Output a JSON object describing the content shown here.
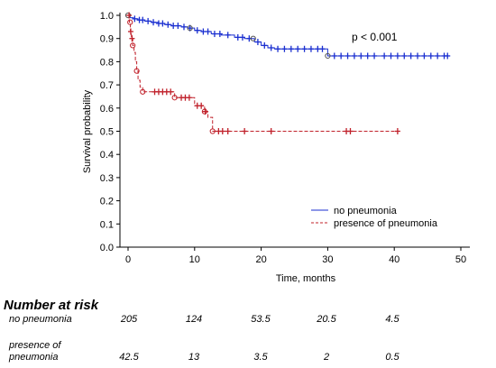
{
  "chart_data": {
    "type": "line",
    "subtype": "kaplan-meier",
    "title": "",
    "xlabel": "Time, months",
    "ylabel": "Survival probability",
    "xlim": [
      0,
      50
    ],
    "ylim": [
      0,
      1.0
    ],
    "xticks": [
      "0",
      "10",
      "20",
      "30",
      "40",
      "50"
    ],
    "yticks": [
      "0.0",
      "0.1",
      "0.2",
      "0.3",
      "0.4",
      "0.5",
      "0.6",
      "0.7",
      "0.8",
      "0.9",
      "1.0"
    ],
    "grid": false,
    "legend_position": "lower-right",
    "annotation": "p < 0.001",
    "series": [
      {
        "name": "no pneumonia",
        "color": "#1a2fd0",
        "style": "solid",
        "steps": [
          [
            0,
            1.0
          ],
          [
            0.3,
            0.99
          ],
          [
            0.8,
            0.985
          ],
          [
            1.5,
            0.98
          ],
          [
            2.5,
            0.975
          ],
          [
            3.5,
            0.97
          ],
          [
            4.5,
            0.965
          ],
          [
            5.5,
            0.96
          ],
          [
            6.5,
            0.955
          ],
          [
            8,
            0.95
          ],
          [
            9,
            0.945
          ],
          [
            10,
            0.935
          ],
          [
            11,
            0.93
          ],
          [
            12.5,
            0.92
          ],
          [
            14,
            0.915
          ],
          [
            16,
            0.905
          ],
          [
            17.5,
            0.9
          ],
          [
            19,
            0.885
          ],
          [
            20,
            0.87
          ],
          [
            21,
            0.86
          ],
          [
            22,
            0.855
          ],
          [
            30,
            0.825
          ],
          [
            48,
            0.825
          ]
        ],
        "censored": [
          1,
          1.7,
          2.2,
          3,
          3.8,
          4.6,
          5.2,
          6,
          6.8,
          7.5,
          8.4,
          9.3,
          10.4,
          11.3,
          12,
          13,
          13.8,
          15,
          16.5,
          17.2,
          18.2,
          19.5,
          20.5,
          21.5,
          22.5,
          23.5,
          24.5,
          25.5,
          26.5,
          27.5,
          28.5,
          29.2,
          31,
          32,
          33,
          34,
          35,
          36,
          37,
          38.5,
          39.5,
          40.5,
          41.5,
          42.5,
          43.5,
          44.5,
          45.5,
          46.5,
          47.5,
          48
        ],
        "event_markers": [
          0,
          9.3,
          18.8,
          30
        ]
      },
      {
        "name": "presence of pneumonia",
        "color": "#c0202a",
        "style": "dashed",
        "steps": [
          [
            0,
            1.0
          ],
          [
            0.2,
            0.97
          ],
          [
            0.35,
            0.93
          ],
          [
            0.5,
            0.9
          ],
          [
            0.7,
            0.87
          ],
          [
            0.9,
            0.84
          ],
          [
            1.1,
            0.8
          ],
          [
            1.3,
            0.76
          ],
          [
            1.5,
            0.72
          ],
          [
            1.8,
            0.69
          ],
          [
            2.2,
            0.67
          ],
          [
            7,
            0.645
          ],
          [
            10,
            0.61
          ],
          [
            11.5,
            0.585
          ],
          [
            12,
            0.56
          ],
          [
            12.7,
            0.5
          ],
          [
            41,
            0.5
          ]
        ],
        "censored": [
          0.15,
          0.4,
          0.6,
          4,
          4.6,
          5.2,
          5.8,
          6.4,
          8,
          8.6,
          9.2,
          10.4,
          11,
          11.6,
          13.6,
          14.2,
          15,
          17.5,
          21.5,
          32.8,
          33.4,
          40.5
        ],
        "event_markers": [
          0.3,
          0.7,
          1.3,
          2.2,
          7,
          11.5,
          12.7
        ]
      }
    ]
  },
  "risk_table": {
    "title": "Number at risk",
    "rows": [
      {
        "label": "no pneumonia",
        "values": [
          "205",
          "124",
          "53.5",
          "20.5",
          "4.5"
        ]
      },
      {
        "label_lines": [
          "presence of",
          "pneumonia"
        ],
        "values": [
          "42.5",
          "13",
          "3.5",
          "2",
          "0.5"
        ]
      }
    ]
  }
}
